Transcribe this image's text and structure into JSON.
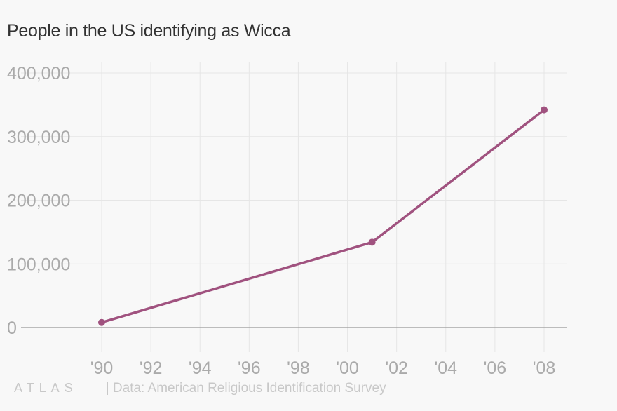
{
  "title": "People in the US identifying as Wicca",
  "chart_data": {
    "type": "line",
    "title": "People in the US identifying as Wicca",
    "xlabel": "",
    "ylabel": "",
    "x": [
      1990,
      2001,
      2008
    ],
    "series": [
      {
        "name": "Wicca",
        "values": [
          8000,
          134000,
          342000
        ],
        "color": "#a0527f"
      }
    ],
    "xlim": [
      1990,
      2008
    ],
    "ylim": [
      0,
      400000
    ],
    "xticks": [
      1990,
      1992,
      1994,
      1996,
      1998,
      2000,
      2002,
      2004,
      2006,
      2008
    ],
    "xtick_labels": [
      "'90",
      "'92",
      "'94",
      "'96",
      "'98",
      "'00",
      "'02",
      "'04",
      "'06",
      "'08"
    ],
    "yticks": [
      0,
      100000,
      200000,
      300000,
      400000
    ],
    "ytick_labels": [
      "0",
      "100,000",
      "200,000",
      "300,000",
      "400,000"
    ],
    "grid": true
  },
  "footer": {
    "logo": "ATLAS",
    "source": "| Data: American Religious Identification Survey"
  }
}
